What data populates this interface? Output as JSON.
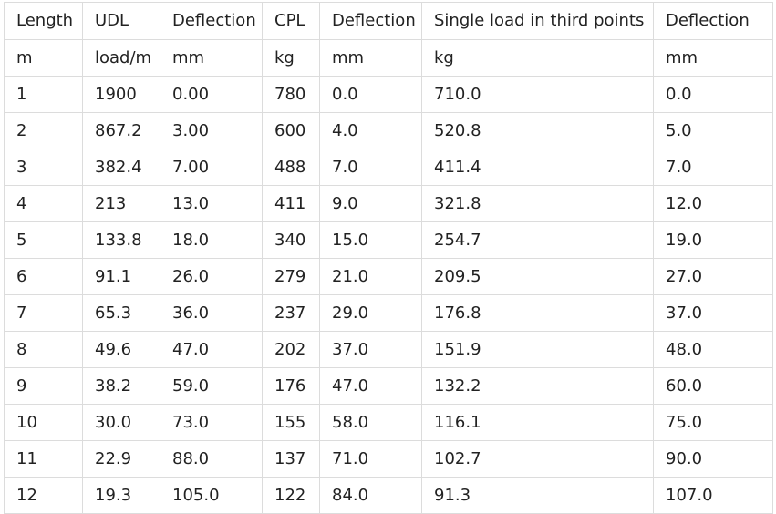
{
  "table": {
    "headers": [
      "Length",
      "UDL",
      "Deflection",
      "CPL",
      "Deflection",
      "Single load in third points",
      "Deflection"
    ],
    "units": [
      "m",
      "load/m",
      "mm",
      "kg",
      "mm",
      "kg",
      "mm"
    ],
    "rows": [
      [
        "1",
        "1900",
        "0.00",
        "780",
        "0.0",
        "710.0",
        "0.0"
      ],
      [
        "2",
        "867.2",
        "3.00",
        "600",
        "4.0",
        "520.8",
        "5.0"
      ],
      [
        "3",
        "382.4",
        "7.00",
        "488",
        "7.0",
        "411.4",
        "7.0"
      ],
      [
        "4",
        "213",
        "13.0",
        "411",
        "9.0",
        "321.8",
        "12.0"
      ],
      [
        "5",
        "133.8",
        "18.0",
        "340",
        "15.0",
        "254.7",
        "19.0"
      ],
      [
        "6",
        "91.1",
        "26.0",
        "279",
        "21.0",
        "209.5",
        "27.0"
      ],
      [
        "7",
        "65.3",
        "36.0",
        "237",
        "29.0",
        "176.8",
        "37.0"
      ],
      [
        "8",
        "49.6",
        "47.0",
        "202",
        "37.0",
        "151.9",
        "48.0"
      ],
      [
        "9",
        "38.2",
        "59.0",
        "176",
        "47.0",
        "132.2",
        "60.0"
      ],
      [
        "10",
        "30.0",
        "73.0",
        "155",
        "58.0",
        "116.1",
        "75.0"
      ],
      [
        "11",
        "22.9",
        "88.0",
        "137",
        "71.0",
        "102.7",
        "90.0"
      ],
      [
        "12",
        "19.3",
        "105.0",
        "122",
        "84.0",
        "91.3",
        "107.0"
      ]
    ]
  }
}
